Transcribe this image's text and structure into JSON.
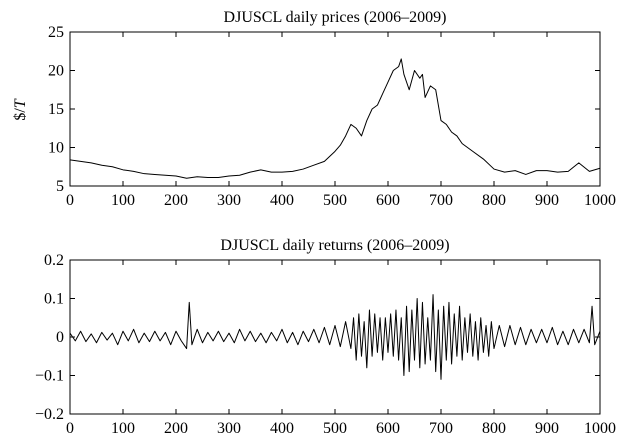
{
  "chart_data": [
    {
      "type": "line",
      "title": "DJUSCL daily prices (2006–2009)",
      "ylabel_prefix": "$/",
      "ylabel_italic": "T",
      "xlim": [
        0,
        1000
      ],
      "ylim": [
        5,
        25
      ],
      "xticks": [
        "0",
        "100",
        "200",
        "300",
        "400",
        "500",
        "600",
        "700",
        "800",
        "900",
        "1000"
      ],
      "yticks": [
        "5",
        "10",
        "15",
        "20",
        "25"
      ],
      "grid": false,
      "series": [
        {
          "x": [
            0,
            20,
            40,
            60,
            80,
            100,
            120,
            140,
            160,
            180,
            200,
            220,
            240,
            260,
            280,
            300,
            320,
            340,
            360,
            380,
            400,
            420,
            440,
            460,
            480,
            500,
            510,
            520,
            530,
            540,
            550,
            560,
            570,
            580,
            590,
            600,
            610,
            620,
            625,
            630,
            640,
            650,
            660,
            665,
            670,
            680,
            690,
            700,
            710,
            720,
            730,
            740,
            760,
            780,
            800,
            820,
            840,
            860,
            880,
            900,
            920,
            940,
            960,
            980,
            1000
          ],
          "y": [
            8.4,
            8.2,
            8.0,
            7.7,
            7.5,
            7.1,
            6.9,
            6.6,
            6.5,
            6.4,
            6.3,
            6.0,
            6.2,
            6.1,
            6.1,
            6.3,
            6.4,
            6.8,
            7.1,
            6.8,
            6.8,
            6.9,
            7.2,
            7.7,
            8.2,
            9.5,
            10.3,
            11.5,
            13.0,
            12.5,
            11.5,
            13.5,
            15.0,
            15.5,
            17.0,
            18.5,
            20.0,
            20.5,
            21.5,
            19.5,
            17.5,
            20.0,
            19.0,
            19.5,
            16.5,
            18.0,
            17.5,
            13.5,
            13.0,
            12.0,
            11.5,
            10.5,
            9.5,
            8.5,
            7.2,
            6.8,
            7.0,
            6.5,
            7.0,
            7.0,
            6.8,
            6.9,
            8.0,
            6.9,
            7.3
          ],
          "color": "#000000"
        }
      ]
    },
    {
      "type": "line",
      "title": "DJUSCL daily returns (2006–2009)",
      "xlim": [
        0,
        1000
      ],
      "ylim": [
        -0.2,
        0.2
      ],
      "xticks": [
        "0",
        "100",
        "200",
        "300",
        "400",
        "500",
        "600",
        "700",
        "800",
        "900",
        "1000"
      ],
      "yticks": [
        "−0.2",
        "−0.1",
        "0",
        "0.1",
        "0.2"
      ],
      "grid": false,
      "series": [
        {
          "x": [
            0,
            10,
            20,
            30,
            40,
            50,
            60,
            70,
            80,
            90,
            100,
            110,
            120,
            130,
            140,
            150,
            160,
            170,
            180,
            190,
            200,
            210,
            220,
            225,
            230,
            240,
            250,
            260,
            270,
            280,
            290,
            300,
            310,
            320,
            330,
            340,
            350,
            360,
            370,
            380,
            390,
            400,
            410,
            420,
            430,
            440,
            450,
            460,
            470,
            480,
            490,
            500,
            510,
            520,
            530,
            535,
            540,
            545,
            550,
            555,
            560,
            565,
            570,
            575,
            580,
            585,
            590,
            595,
            600,
            605,
            610,
            615,
            620,
            625,
            630,
            635,
            640,
            645,
            650,
            655,
            660,
            665,
            670,
            675,
            680,
            685,
            690,
            695,
            700,
            705,
            710,
            715,
            720,
            725,
            730,
            735,
            740,
            745,
            750,
            755,
            760,
            765,
            770,
            775,
            780,
            785,
            790,
            795,
            800,
            810,
            820,
            830,
            840,
            850,
            860,
            870,
            880,
            890,
            900,
            910,
            920,
            930,
            940,
            950,
            960,
            970,
            980,
            985,
            990,
            1000
          ],
          "y": [
            0.01,
            -0.01,
            0.015,
            -0.012,
            0.008,
            -0.015,
            0.012,
            -0.008,
            0.01,
            -0.02,
            0.015,
            -0.01,
            0.02,
            -0.015,
            0.01,
            -0.012,
            0.015,
            -0.01,
            0.012,
            -0.02,
            0.015,
            -0.01,
            -0.03,
            0.09,
            -0.02,
            0.02,
            -0.015,
            0.012,
            -0.01,
            0.015,
            -0.012,
            0.01,
            -0.015,
            0.02,
            -0.01,
            0.015,
            -0.012,
            0.01,
            -0.015,
            0.012,
            -0.01,
            0.02,
            -0.015,
            0.012,
            -0.02,
            0.015,
            -0.012,
            0.02,
            -0.015,
            0.025,
            -0.02,
            0.03,
            -0.025,
            0.04,
            -0.03,
            0.05,
            -0.06,
            0.06,
            -0.05,
            0.04,
            -0.08,
            0.07,
            -0.05,
            0.06,
            -0.04,
            0.05,
            -0.06,
            0.05,
            -0.04,
            0.06,
            -0.05,
            0.07,
            -0.06,
            0.05,
            -0.1,
            0.08,
            -0.09,
            0.07,
            -0.06,
            0.1,
            -0.08,
            0.09,
            -0.07,
            0.05,
            -0.06,
            0.11,
            -0.09,
            0.07,
            -0.11,
            0.08,
            -0.06,
            0.09,
            -0.07,
            0.06,
            -0.05,
            0.08,
            -0.06,
            0.05,
            -0.04,
            0.06,
            -0.05,
            0.04,
            -0.06,
            0.05,
            -0.04,
            0.03,
            -0.05,
            0.04,
            -0.03,
            0.03,
            -0.025,
            0.03,
            -0.02,
            0.025,
            -0.02,
            0.02,
            -0.015,
            0.02,
            -0.015,
            0.025,
            -0.02,
            0.015,
            -0.02,
            0.02,
            -0.015,
            0.02,
            -0.015,
            0.08,
            -0.02,
            0.015
          ],
          "color": "#000000"
        }
      ]
    }
  ]
}
